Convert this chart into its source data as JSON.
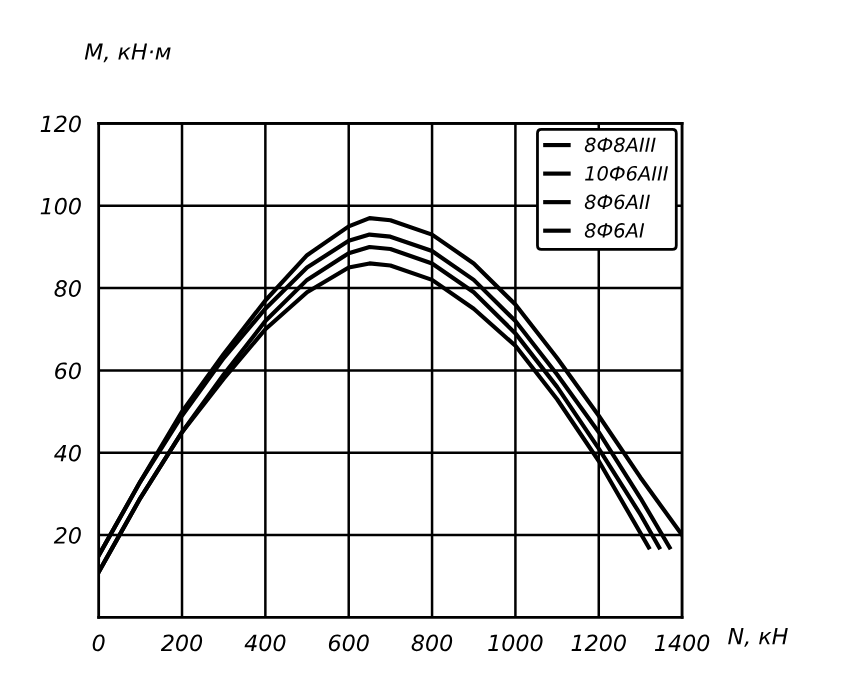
{
  "chart_data": {
    "type": "line",
    "xlabel": "N, кН",
    "ylabel": "M, кН·м",
    "xlim": [
      0,
      1400
    ],
    "ylim": [
      0,
      120
    ],
    "xticks": [
      0,
      200,
      400,
      600,
      800,
      1000,
      1200,
      1400
    ],
    "yticks": [
      20,
      40,
      60,
      80,
      100,
      120
    ],
    "grid": true,
    "legend": "top right",
    "marker": "none",
    "line_style": "solid",
    "series": [
      {
        "name": "8Ф8АIII",
        "color": "#000000",
        "x": [
          0,
          100,
          200,
          300,
          400,
          500,
          600,
          650,
          700,
          800,
          900,
          1000,
          1100,
          1200,
          1300,
          1400
        ],
        "values": [
          15,
          33,
          50,
          64,
          77,
          88,
          95,
          97,
          96.5,
          93,
          86,
          76,
          63,
          49,
          34,
          20
        ]
      },
      {
        "name": "10Ф6АIII",
        "color": "#000000",
        "x": [
          0,
          100,
          200,
          300,
          400,
          500,
          600,
          650,
          700,
          800,
          900,
          1000,
          1100,
          1200,
          1300,
          1370
        ],
        "values": [
          15,
          33,
          49,
          63,
          75,
          85,
          91.5,
          93,
          92.5,
          89,
          82,
          72,
          59,
          45,
          29,
          17
        ]
      },
      {
        "name": "8Ф6АII",
        "color": "#000000",
        "x": [
          0,
          100,
          200,
          300,
          400,
          500,
          600,
          650,
          700,
          800,
          900,
          1000,
          1100,
          1200,
          1300,
          1345
        ],
        "values": [
          11,
          29,
          45,
          59,
          72,
          82,
          88.5,
          90,
          89.5,
          86,
          79,
          69,
          56,
          41,
          25,
          17
        ]
      },
      {
        "name": "8Ф6АI",
        "color": "#000000",
        "x": [
          0,
          100,
          200,
          300,
          400,
          500,
          600,
          650,
          700,
          800,
          900,
          1000,
          1100,
          1200,
          1320
        ],
        "values": [
          11,
          29,
          45,
          58,
          70,
          79,
          85,
          86,
          85.5,
          82,
          75,
          66,
          53,
          38,
          17
        ]
      }
    ]
  }
}
